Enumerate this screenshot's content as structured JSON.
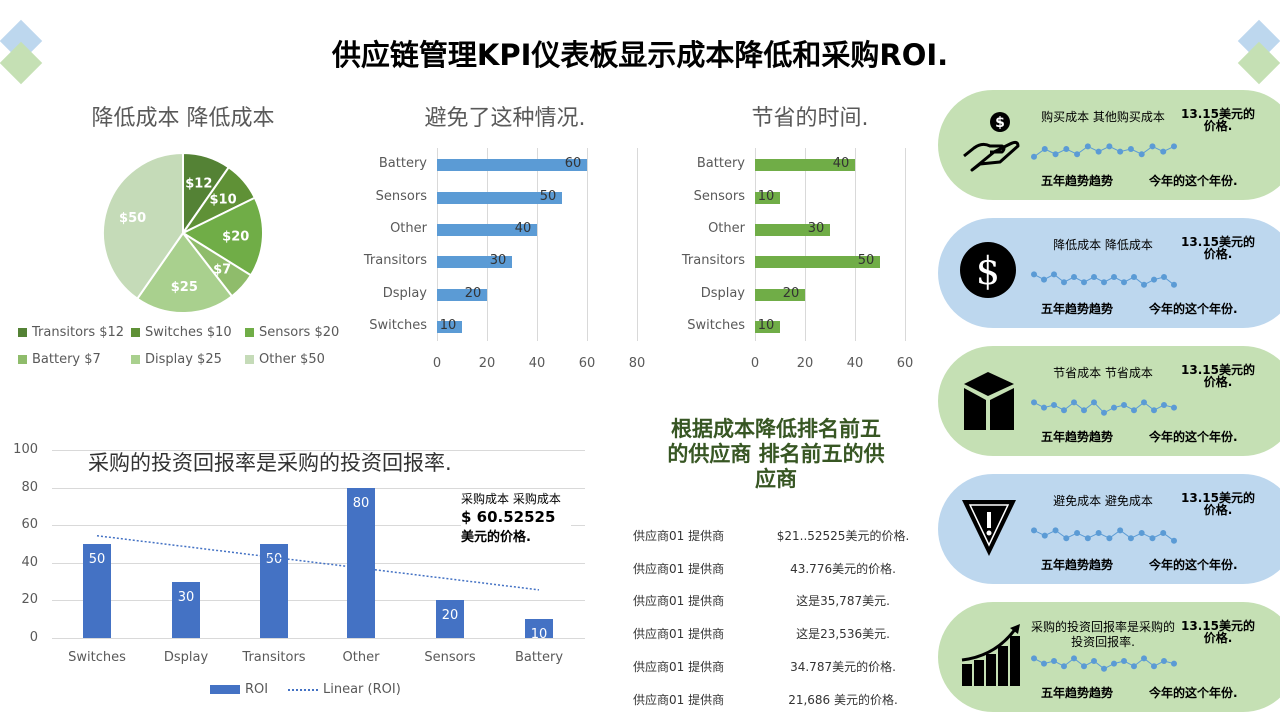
{
  "header": {
    "title": "供应链管理KPI仪表板显示成本降低和采购ROI."
  },
  "colors": {
    "green": "#c5e0b4",
    "blue": "#bdd7ee",
    "bar_blue": "#5b9bd5",
    "bar_green": "#70ad47",
    "roi_blue": "#4472c4",
    "heading_green": "#375623"
  },
  "chart_data": [
    {
      "type": "pie",
      "title": "降低成本 降低成本",
      "categories": [
        "Transitors",
        "Switches",
        "Sensors",
        "Battery",
        "Display",
        "Other"
      ],
      "values": [
        12,
        10,
        20,
        7,
        25,
        50
      ],
      "data_labels": [
        "$12",
        "$10",
        "$20",
        "$7",
        "$25",
        "$50"
      ],
      "legend": [
        "Transitors $12",
        "Switches $10",
        "Sensors $20",
        "Battery $7",
        "Display $25",
        "Other $50"
      ],
      "colors": [
        "#548235",
        "#5f9136",
        "#70ad47",
        "#8fbc6b",
        "#a9d08e",
        "#c5dbb8"
      ],
      "legend_placement": "bottom"
    },
    {
      "type": "bar",
      "orientation": "horizontal",
      "title": "避免了这种情况.",
      "categories": [
        "Battery",
        "Sensors",
        "Other",
        "Transitors",
        "Dsplay",
        "Switches"
      ],
      "values": [
        60,
        50,
        40,
        30,
        20,
        10
      ],
      "xlim": [
        0,
        80
      ],
      "xticks": [
        "0",
        "20",
        "40",
        "60",
        "80"
      ],
      "grid": true
    },
    {
      "type": "bar",
      "orientation": "horizontal",
      "title": "节省的时间.",
      "categories": [
        "Battery",
        "Sensors",
        "Other",
        "Transitors",
        "Dsplay",
        "Switches"
      ],
      "values": [
        40,
        10,
        30,
        50,
        20,
        10
      ],
      "xlim": [
        0,
        60
      ],
      "xticks": [
        "0",
        "20",
        "40",
        "60"
      ],
      "grid": true
    },
    {
      "type": "bar",
      "title": "采购的投资回报率是采购的投资回报率.",
      "categories": [
        "Switches",
        "Dsplay",
        "Transitors",
        "Other",
        "Sensors",
        "Battery"
      ],
      "values": [
        50,
        30,
        50,
        80,
        20,
        10
      ],
      "ylim": [
        0,
        100
      ],
      "yticks": [
        "0",
        "20",
        "40",
        "60",
        "80",
        "100"
      ],
      "legend": [
        "ROI",
        "Linear (ROI)"
      ],
      "trendline": {
        "type": "linear",
        "start": 54.4,
        "end": 25.6
      },
      "legend_placement": "bottom",
      "grid": true
    }
  ],
  "annotation": {
    "label": "采购成本 采购成本",
    "value": "$ 60.52525",
    "unit": "美元的价格."
  },
  "top_suppliers": {
    "title": "根据成本降低排名前五的供应商 排名前五的供应商",
    "rows": [
      {
        "name": "供应商01 提供商",
        "value": "$21..52525美元的价格."
      },
      {
        "name": "供应商01 提供商",
        "value": "43.776美元的价格."
      },
      {
        "name": "供应商01 提供商",
        "value": "这是35,787美元."
      },
      {
        "name": "供应商01 提供商",
        "value": "这是23,536美元."
      },
      {
        "name": "供应商01 提供商",
        "value": "34.787美元的价格."
      },
      {
        "name": "供应商01 提供商",
        "value": "21,686 美元的价格."
      }
    ]
  },
  "kpis": [
    {
      "title": "购买成本 其他购买成本",
      "value": "13.15美元的价格.",
      "trend_label": "五年趋势趋势",
      "period_label": "今年的这个年份.",
      "icon": "hand-dollar-icon",
      "color": "green",
      "trend": [
        2,
        5,
        3,
        5,
        3,
        6,
        4,
        6,
        4,
        5,
        3,
        6,
        4,
        6
      ]
    },
    {
      "title": "降低成本 降低成本",
      "value": "13.15美元的价格.",
      "trend_label": "五年趋势趋势",
      "period_label": "今年的这个年份.",
      "icon": "dollar-circle-icon",
      "color": "blue",
      "trend": [
        6,
        4,
        6,
        3,
        5,
        3,
        5,
        3,
        5,
        3,
        5,
        2,
        4,
        5,
        2
      ]
    },
    {
      "title": "节省成本 节省成本",
      "value": "13.15美元的价格.",
      "trend_label": "五年趋势趋势",
      "period_label": "今年的这个年份.",
      "icon": "box-icon",
      "color": "green",
      "trend": [
        6,
        4,
        5,
        3,
        6,
        3,
        6,
        2,
        4,
        5,
        3,
        6,
        3,
        5,
        4
      ]
    },
    {
      "title": "避免成本 避免成本",
      "value": "13.15美元的价格.",
      "trend_label": "五年趋势趋势",
      "period_label": "今年的这个年份.",
      "icon": "warning-icon",
      "color": "blue",
      "trend": [
        6,
        4,
        6,
        3,
        5,
        3,
        5,
        3,
        6,
        3,
        5,
        3,
        5,
        2
      ]
    },
    {
      "title": "采购的投资回报率是采购的投资回报率.",
      "value": "13.15美元的价格.",
      "trend_label": "五年趋势趋势",
      "period_label": "今年的这个年份.",
      "icon": "growth-chart-icon",
      "color": "green",
      "trend": [
        6,
        4,
        5,
        3,
        6,
        3,
        5,
        2,
        4,
        5,
        3,
        6,
        3,
        5,
        4
      ]
    }
  ]
}
